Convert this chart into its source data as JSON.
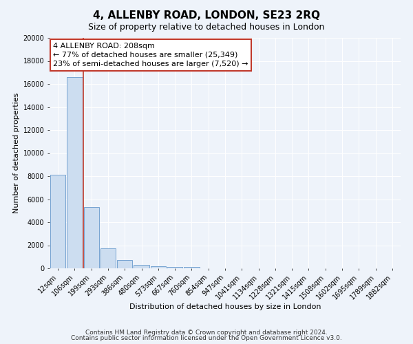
{
  "title": "4, ALLENBY ROAD, LONDON, SE23 2RQ",
  "subtitle": "Size of property relative to detached houses in London",
  "xlabel": "Distribution of detached houses by size in London",
  "ylabel": "Number of detached properties",
  "bar_labels": [
    "12sqm",
    "106sqm",
    "199sqm",
    "293sqm",
    "386sqm",
    "480sqm",
    "573sqm",
    "667sqm",
    "760sqm",
    "854sqm",
    "947sqm",
    "1041sqm",
    "1134sqm",
    "1228sqm",
    "1321sqm",
    "1415sqm",
    "1508sqm",
    "1602sqm",
    "1695sqm",
    "1789sqm",
    "1882sqm"
  ],
  "bar_values": [
    8100,
    16600,
    5300,
    1750,
    700,
    300,
    200,
    130,
    130,
    0,
    0,
    0,
    0,
    0,
    0,
    0,
    0,
    0,
    0,
    0,
    0
  ],
  "bar_color": "#ccddf0",
  "bar_edge_color": "#6699cc",
  "vline_color": "#c0392b",
  "annotation_text": "4 ALLENBY ROAD: 208sqm\n← 77% of detached houses are smaller (25,349)\n23% of semi-detached houses are larger (7,520) →",
  "annotation_box_color": "#ffffff",
  "annotation_box_edge": "#c0392b",
  "ylim": [
    0,
    20000
  ],
  "yticks": [
    0,
    2000,
    4000,
    6000,
    8000,
    10000,
    12000,
    14000,
    16000,
    18000,
    20000
  ],
  "footer_line1": "Contains HM Land Registry data © Crown copyright and database right 2024.",
  "footer_line2": "Contains public sector information licensed under the Open Government Licence v3.0.",
  "bg_color": "#eef3fa",
  "grid_color": "#ffffff",
  "title_fontsize": 11,
  "subtitle_fontsize": 9,
  "axis_label_fontsize": 8,
  "tick_fontsize": 7,
  "annotation_fontsize": 8,
  "footer_fontsize": 6.5
}
